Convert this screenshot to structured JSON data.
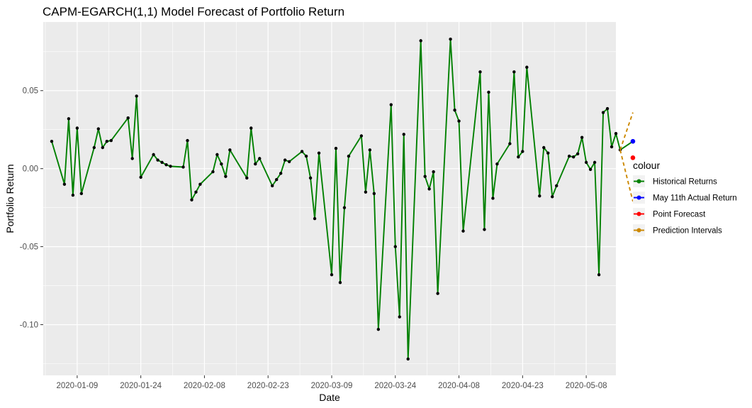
{
  "chart_data": {
    "type": "line",
    "title": "CAPM-EGARCH(1,1) Model Forecast of Portfolio Return",
    "xlabel": "Date",
    "ylabel": "Portfolio Return",
    "x_ticks": [
      "2020-01-09",
      "2020-01-24",
      "2020-02-08",
      "2020-02-23",
      "2020-03-09",
      "2020-03-24",
      "2020-04-08",
      "2020-04-23",
      "2020-05-08"
    ],
    "y_ticks": [
      "-0.10",
      "-0.05",
      "0.00",
      "0.05"
    ],
    "xlim": [
      "2020-01-01",
      "2020-05-15"
    ],
    "ylim": [
      -0.1325,
      0.094
    ],
    "grid": true,
    "legend": {
      "title": "colour",
      "position": "right",
      "entries": [
        {
          "label": "Historical Returns",
          "color": "#008000"
        },
        {
          "label": "May 11th Actual Return",
          "color": "#0000ff"
        },
        {
          "label": "Point Forecast",
          "color": "#ff0000"
        },
        {
          "label": "Prediction Intervals",
          "color": "#cc8800"
        }
      ]
    },
    "series": [
      {
        "name": "Historical Returns",
        "color": "#008000",
        "points": [
          [
            "2020-01-03",
            0.0175
          ],
          [
            "2020-01-06",
            -0.01
          ],
          [
            "2020-01-07",
            0.032
          ],
          [
            "2020-01-08",
            -0.017
          ],
          [
            "2020-01-09",
            0.026
          ],
          [
            "2020-01-10",
            -0.016
          ],
          [
            "2020-01-13",
            0.0135
          ],
          [
            "2020-01-14",
            0.0255
          ],
          [
            "2020-01-15",
            0.0135
          ],
          [
            "2020-01-16",
            0.0175
          ],
          [
            "2020-01-17",
            0.018
          ],
          [
            "2020-01-21",
            0.0325
          ],
          [
            "2020-01-22",
            0.0065
          ],
          [
            "2020-01-23",
            0.0465
          ],
          [
            "2020-01-24",
            -0.0055
          ],
          [
            "2020-01-27",
            0.009
          ],
          [
            "2020-01-28",
            0.0055
          ],
          [
            "2020-01-29",
            0.004
          ],
          [
            "2020-01-30",
            0.0025
          ],
          [
            "2020-01-31",
            0.0015
          ],
          [
            "2020-02-03",
            0.001
          ],
          [
            "2020-02-04",
            0.018
          ],
          [
            "2020-02-05",
            -0.02
          ],
          [
            "2020-02-06",
            -0.015
          ],
          [
            "2020-02-07",
            -0.01
          ],
          [
            "2020-02-10",
            -0.002
          ],
          [
            "2020-02-11",
            0.009
          ],
          [
            "2020-02-12",
            0.003
          ],
          [
            "2020-02-13",
            -0.005
          ],
          [
            "2020-02-14",
            0.012
          ],
          [
            "2020-02-18",
            -0.006
          ],
          [
            "2020-02-19",
            0.026
          ],
          [
            "2020-02-20",
            0.003
          ],
          [
            "2020-02-21",
            0.0065
          ],
          [
            "2020-02-24",
            -0.011
          ],
          [
            "2020-02-25",
            -0.007
          ],
          [
            "2020-02-26",
            -0.003
          ],
          [
            "2020-02-27",
            0.0055
          ],
          [
            "2020-02-28",
            0.0045
          ],
          [
            "2020-03-02",
            0.011
          ],
          [
            "2020-03-03",
            0.008
          ],
          [
            "2020-03-04",
            -0.006
          ],
          [
            "2020-03-05",
            -0.032
          ],
          [
            "2020-03-06",
            0.01
          ],
          [
            "2020-03-09",
            -0.068
          ],
          [
            "2020-03-10",
            0.013
          ],
          [
            "2020-03-11",
            -0.073
          ],
          [
            "2020-03-12",
            -0.025
          ],
          [
            "2020-03-13",
            0.008
          ],
          [
            "2020-03-16",
            0.021
          ],
          [
            "2020-03-17",
            -0.015
          ],
          [
            "2020-03-18",
            0.012
          ],
          [
            "2020-03-19",
            -0.016
          ],
          [
            "2020-03-20",
            -0.103
          ],
          [
            "2020-03-23",
            0.041
          ],
          [
            "2020-03-24",
            -0.05
          ],
          [
            "2020-03-25",
            -0.095
          ],
          [
            "2020-03-26",
            0.022
          ],
          [
            "2020-03-27",
            -0.122
          ],
          [
            "2020-03-30",
            0.082
          ],
          [
            "2020-03-31",
            -0.005
          ],
          [
            "2020-04-01",
            -0.013
          ],
          [
            "2020-04-02",
            -0.002
          ],
          [
            "2020-04-03",
            -0.08
          ],
          [
            "2020-04-06",
            0.083
          ],
          [
            "2020-04-07",
            0.0375
          ],
          [
            "2020-04-08",
            0.0305
          ],
          [
            "2020-04-09",
            -0.04
          ],
          [
            "2020-04-13",
            0.062
          ],
          [
            "2020-04-14",
            -0.039
          ],
          [
            "2020-04-15",
            0.049
          ],
          [
            "2020-04-16",
            -0.019
          ],
          [
            "2020-04-17",
            0.003
          ],
          [
            "2020-04-20",
            0.016
          ],
          [
            "2020-04-21",
            0.062
          ],
          [
            "2020-04-22",
            0.0075
          ],
          [
            "2020-04-23",
            0.011
          ],
          [
            "2020-04-24",
            0.065
          ],
          [
            "2020-04-27",
            -0.0175
          ],
          [
            "2020-04-28",
            0.0135
          ],
          [
            "2020-04-29",
            0.01
          ],
          [
            "2020-04-30",
            -0.018
          ],
          [
            "2020-05-01",
            -0.011
          ],
          [
            "2020-05-04",
            0.008
          ],
          [
            "2020-05-05",
            0.0075
          ],
          [
            "2020-05-06",
            0.0095
          ],
          [
            "2020-05-07",
            0.02
          ],
          [
            "2020-05-08",
            0.004
          ],
          [
            "2020-05-09",
            -0.0005
          ],
          [
            "2020-05-10",
            0.004
          ],
          [
            "2020-05-11",
            -0.068
          ],
          [
            "2020-05-12",
            0.036
          ],
          [
            "2020-05-13",
            0.0385
          ],
          [
            "2020-05-14",
            0.014
          ],
          [
            "2020-05-15",
            0.0225
          ],
          [
            "2020-05-16",
            0.012
          ],
          [
            "2020-05-19",
            0.0175
          ]
        ]
      },
      {
        "name": "May 11th Actual Return",
        "color": "#0000ff",
        "points": [
          [
            "2020-05-19",
            0.0175
          ]
        ]
      },
      {
        "name": "Point Forecast",
        "color": "#ff0000",
        "points": [
          [
            "2020-05-19",
            0.007
          ]
        ]
      },
      {
        "name": "Prediction Intervals",
        "color": "#cc8800",
        "dashed": true,
        "upper": [
          [
            "2020-05-16",
            0.012
          ],
          [
            "2020-05-19",
            0.036
          ]
        ],
        "lower": [
          [
            "2020-05-16",
            0.012
          ],
          [
            "2020-05-19",
            -0.021
          ]
        ]
      }
    ]
  }
}
